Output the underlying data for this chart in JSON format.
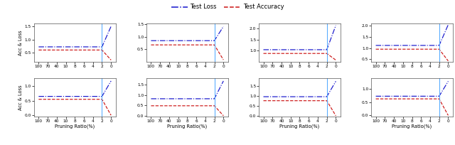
{
  "legend_labels": [
    "Test Loss",
    "Test Accuracy"
  ],
  "x_ticks_labels": [
    "100",
    "70",
    "40",
    "10",
    "8",
    "6",
    "4",
    "2",
    "0"
  ],
  "x_label": "Pruning Ratio(%)",
  "y_label": "Acc & Loss",
  "vline_pos": 7,
  "n_xticks": 9,
  "subplots": [
    {
      "row": 0,
      "col": 0,
      "loss_flat": 0.72,
      "acc_flat": 0.6,
      "loss_spike": 1.5,
      "acc_drop": 0.22,
      "ylim": [
        0.15,
        1.62
      ],
      "yticks": [
        0.5,
        1.0,
        1.5
      ]
    },
    {
      "row": 0,
      "col": 1,
      "loss_flat": 0.85,
      "acc_flat": 0.68,
      "loss_spike": 1.42,
      "acc_drop": 0.08,
      "ylim": [
        0.0,
        1.55
      ],
      "yticks": [
        0.5,
        1.0,
        1.5
      ]
    },
    {
      "row": 0,
      "col": 2,
      "loss_flat": 1.05,
      "acc_flat": 0.88,
      "loss_spike": 2.15,
      "acc_drop": 0.58,
      "ylim": [
        0.5,
        2.25
      ],
      "yticks": [
        1.0,
        1.5,
        2.0
      ]
    },
    {
      "row": 0,
      "col": 3,
      "loss_flat": 1.12,
      "acc_flat": 0.95,
      "loss_spike": 2.05,
      "acc_drop": 0.42,
      "ylim": [
        0.38,
        2.12
      ],
      "yticks": [
        0.5,
        1.0,
        1.5,
        2.0
      ]
    },
    {
      "row": 1,
      "col": 0,
      "loss_flat": 0.65,
      "acc_flat": 0.55,
      "loss_spike": 1.18,
      "acc_drop": 0.0,
      "ylim": [
        -0.05,
        1.28
      ],
      "yticks": [
        0.0,
        0.5,
        1.0
      ]
    },
    {
      "row": 1,
      "col": 1,
      "loss_flat": 0.82,
      "acc_flat": 0.48,
      "loss_spike": 1.68,
      "acc_drop": 0.0,
      "ylim": [
        -0.05,
        1.82
      ],
      "yticks": [
        0.0,
        0.5,
        1.0,
        1.5
      ]
    },
    {
      "row": 1,
      "col": 2,
      "loss_flat": 0.95,
      "acc_flat": 0.75,
      "loss_spike": 1.72,
      "acc_drop": 0.0,
      "ylim": [
        -0.05,
        1.88
      ],
      "yticks": [
        0.0,
        0.5,
        1.0,
        1.5
      ]
    },
    {
      "row": 1,
      "col": 3,
      "loss_flat": 0.72,
      "acc_flat": 0.62,
      "loss_spike": 1.28,
      "acc_drop": 0.0,
      "ylim": [
        -0.05,
        1.4
      ],
      "yticks": [
        0.0,
        0.5,
        1.0
      ]
    }
  ],
  "line_color_loss": "#1515cc",
  "line_color_acc": "#cc1515",
  "vline_color": "#55aaff"
}
